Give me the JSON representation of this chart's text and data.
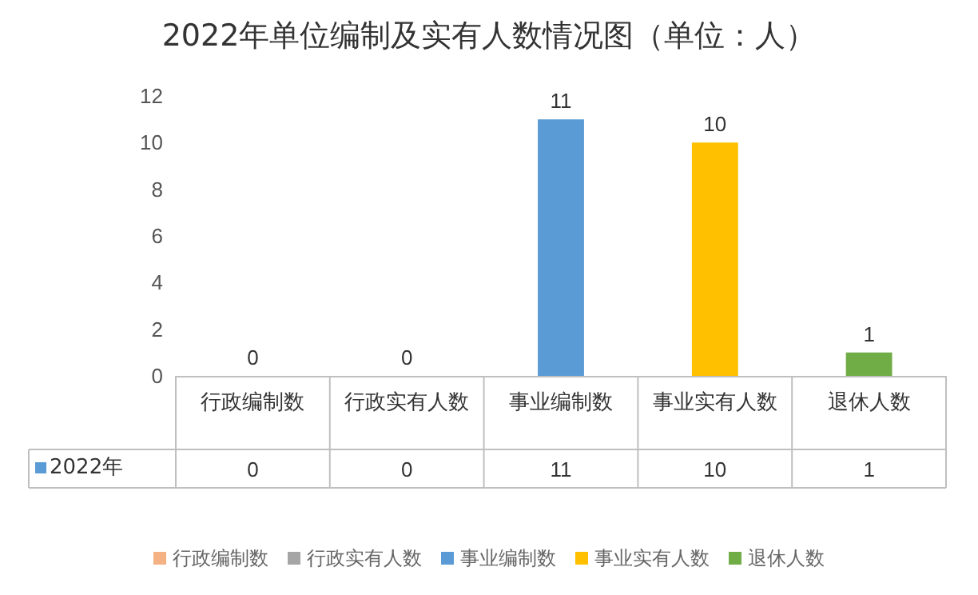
{
  "chart_data": {
    "type": "bar",
    "title": "2022年单位编制及实有人数情况图（单位：人）",
    "categories": [
      "行政编制数",
      "行政实有人数",
      "事业编制数",
      "事业实有人数",
      "退休人数"
    ],
    "series": [
      {
        "name": "2022年",
        "color": "#5b9bd5",
        "colors": [
          "#f4b183",
          "#a5a5a5",
          "#5b9bd5",
          "#ffc000",
          "#70ad47"
        ],
        "values": [
          0,
          0,
          11,
          10,
          1
        ],
        "value_labels": [
          "0",
          "0",
          "11",
          "10",
          "1"
        ]
      }
    ],
    "annotations": [
      "0",
      "0",
      "11",
      "10",
      "1"
    ],
    "ylim": [
      0,
      12
    ],
    "yticks": [
      0,
      2,
      4,
      6,
      8,
      10,
      12
    ],
    "grid": false,
    "legend": "bottom"
  }
}
